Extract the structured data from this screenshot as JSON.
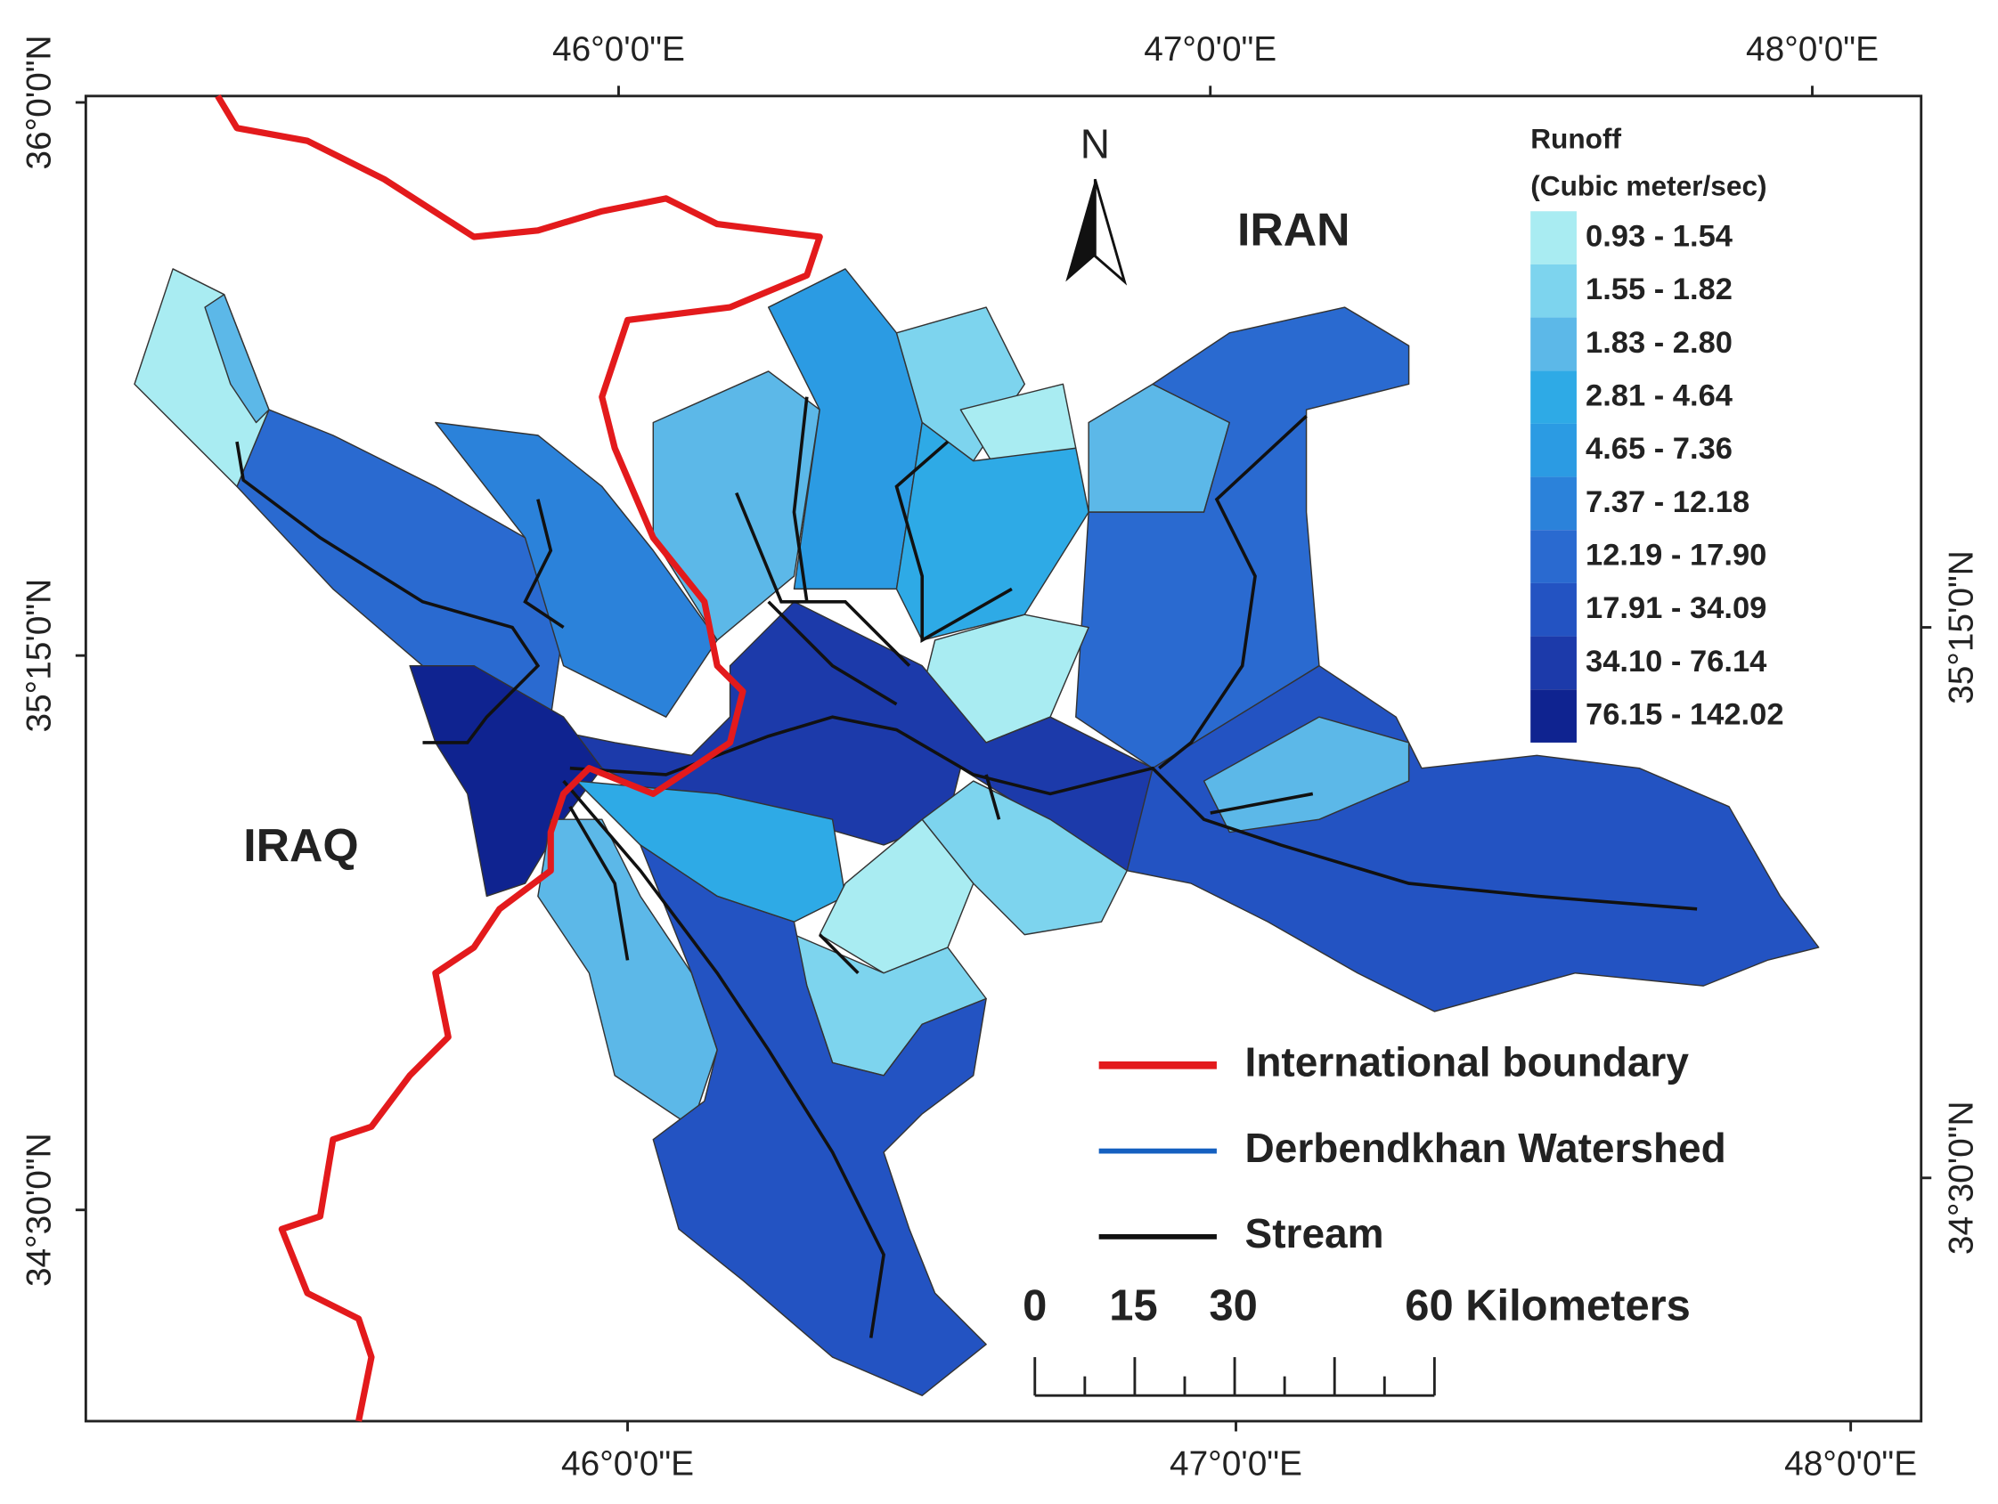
{
  "map": {
    "graticule": {
      "top": [
        "46°0'0\"E",
        "47°0'0\"E",
        "48°0'0\"E"
      ],
      "bottom": [
        "46°0'0\"E",
        "47°0'0\"E",
        "48°0'0\"E"
      ],
      "left": [
        "36°0'0\"N",
        "35°15'0\"N",
        "34°30'0\"N"
      ],
      "right": [
        "35°15'0\"N",
        "34°30'0\"N"
      ]
    },
    "countries": [
      "IRAN",
      "IRAQ"
    ],
    "north": "N",
    "legend": {
      "title": "Runoff",
      "subtitle": "(Cubic meter/sec)",
      "classes": [
        {
          "label": "0.93 - 1.54",
          "color": "#a9ecf2"
        },
        {
          "label": "1.55 - 1.82",
          "color": "#7dd4ee"
        },
        {
          "label": "1.83 - 2.80",
          "color": "#5cb8e8"
        },
        {
          "label": "2.81 - 4.64",
          "color": "#2eaae6"
        },
        {
          "label": "4.65 - 7.36",
          "color": "#2b9be3"
        },
        {
          "label": "7.37 - 12.18",
          "color": "#2b82da"
        },
        {
          "label": "12.19 - 17.90",
          "color": "#2a6ad0"
        },
        {
          "label": "17.91 - 34.09",
          "color": "#2353c2"
        },
        {
          "label": "34.10 - 76.14",
          "color": "#1c3aaa"
        },
        {
          "label": "76.15 - 142.02",
          "color": "#0f2390"
        }
      ]
    },
    "lines": [
      {
        "label": "International boundary",
        "color": "#e31a1c"
      },
      {
        "label": "Derbendkhan Watershed",
        "color": "#1560c0"
      },
      {
        "label": "Stream",
        "color": "#111111"
      }
    ],
    "scale_bar": [
      "0",
      "15",
      "30",
      "60 Kilometers"
    ]
  }
}
